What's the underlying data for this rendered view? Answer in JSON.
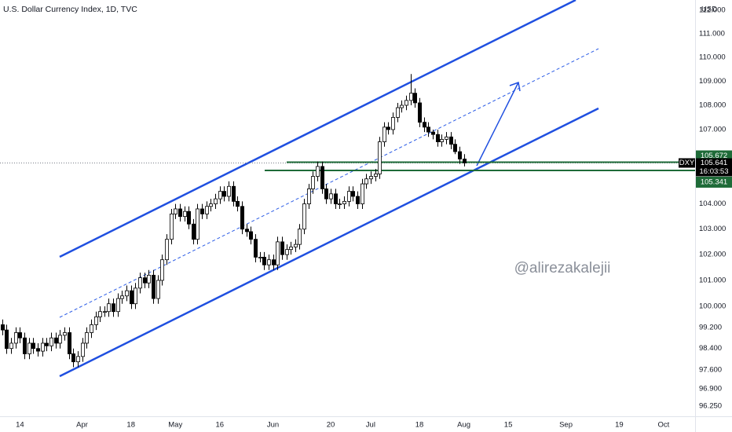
{
  "chart_data": {
    "type": "candlestick",
    "title": "U.S. Dollar Currency Index, 1D, TVC",
    "currency": "USD",
    "watermark": "@alirezakalejii",
    "open": [
      99.3,
      99.1,
      98.4,
      98.6,
      99.0,
      98.8,
      98.2,
      98.6,
      98.4,
      98.3,
      98.6,
      98.5,
      98.8,
      98.6,
      98.9,
      99.0,
      98.2,
      97.9,
      98.1,
      98.6,
      99.0,
      99.3,
      99.6,
      99.8,
      99.8,
      100.1,
      99.8,
      100.3,
      100.4,
      100.6,
      100.1,
      100.7,
      101.1,
      100.9,
      101.2,
      100.3,
      101.0,
      101.8,
      102.6,
      103.6,
      103.8,
      103.5,
      103.7,
      103.2,
      102.6,
      103.8,
      103.6,
      103.9,
      104.0,
      104.2,
      104.5,
      104.3,
      104.7,
      104.1,
      103.9,
      103.0,
      102.9,
      102.6,
      101.9,
      101.9,
      101.6,
      101.8,
      101.6,
      102.5,
      102.0,
      102.2,
      102.3,
      102.4,
      103.0,
      104.0,
      104.6,
      105.1,
      105.5,
      104.6,
      104.2,
      104.4,
      104.0,
      104.0,
      104.1,
      104.5,
      104.3,
      104.0,
      104.8,
      105.0,
      105.1,
      105.2,
      106.5,
      107.1,
      107.0,
      107.5,
      107.9,
      108.0,
      108.2,
      108.5,
      108.1,
      107.3,
      107.1,
      106.9,
      106.8,
      106.5,
      106.6,
      106.7,
      106.4,
      106.1,
      105.8
    ],
    "high": [
      99.5,
      99.3,
      98.8,
      99.2,
      99.2,
      99.0,
      98.8,
      98.8,
      98.6,
      98.8,
      98.8,
      99.0,
      99.0,
      99.1,
      99.2,
      99.2,
      98.4,
      98.3,
      98.8,
      99.2,
      99.5,
      99.8,
      100.0,
      100.0,
      100.3,
      100.3,
      100.5,
      100.6,
      100.8,
      100.8,
      100.9,
      101.3,
      101.3,
      101.4,
      101.4,
      101.2,
      102.0,
      102.8,
      103.8,
      104.0,
      104.0,
      103.9,
      103.9,
      103.4,
      104.0,
      104.0,
      104.1,
      104.2,
      104.4,
      104.7,
      104.7,
      104.9,
      104.9,
      104.3,
      104.1,
      103.2,
      103.1,
      102.8,
      102.1,
      102.1,
      102.0,
      102.0,
      102.7,
      102.7,
      102.4,
      102.5,
      102.6,
      103.2,
      104.2,
      104.8,
      105.3,
      105.7,
      105.7,
      104.8,
      104.6,
      104.6,
      104.2,
      104.3,
      104.7,
      104.7,
      104.5,
      105.0,
      105.2,
      105.3,
      105.4,
      106.7,
      107.3,
      107.3,
      107.7,
      108.1,
      108.2,
      108.4,
      109.3,
      108.7,
      108.3,
      107.5,
      107.3,
      107.0,
      107.0,
      106.8,
      106.9,
      106.9,
      106.6,
      106.3,
      106.0
    ],
    "low": [
      98.9,
      98.2,
      98.2,
      98.4,
      98.6,
      98.0,
      98.0,
      98.2,
      98.1,
      98.1,
      98.3,
      98.3,
      98.4,
      98.4,
      98.7,
      98.0,
      97.7,
      97.7,
      97.9,
      98.4,
      98.8,
      99.1,
      99.4,
      99.6,
      99.6,
      99.6,
      99.6,
      100.1,
      100.2,
      99.9,
      99.9,
      100.5,
      100.7,
      100.7,
      100.1,
      100.1,
      100.8,
      101.6,
      102.4,
      103.4,
      103.3,
      103.3,
      103.0,
      102.4,
      102.4,
      103.4,
      103.4,
      103.7,
      103.8,
      104.0,
      104.1,
      104.1,
      103.9,
      103.7,
      102.8,
      102.7,
      102.4,
      101.7,
      101.7,
      101.4,
      101.4,
      101.4,
      101.4,
      101.8,
      101.8,
      102.0,
      102.1,
      102.2,
      102.8,
      103.8,
      104.4,
      104.9,
      104.4,
      104.0,
      104.0,
      103.8,
      103.8,
      103.8,
      103.9,
      104.1,
      103.8,
      103.8,
      104.6,
      104.8,
      104.9,
      105.0,
      106.3,
      106.8,
      106.8,
      107.3,
      107.7,
      107.8,
      108.0,
      107.9,
      107.1,
      106.9,
      106.7,
      106.6,
      106.3,
      106.3,
      106.4,
      106.2,
      106.0,
      105.6,
      105.5
    ],
    "close": [
      99.1,
      98.4,
      98.6,
      99.0,
      98.8,
      98.2,
      98.6,
      98.4,
      98.3,
      98.6,
      98.5,
      98.8,
      98.6,
      98.9,
      99.0,
      98.2,
      97.9,
      98.1,
      98.6,
      99.0,
      99.3,
      99.6,
      99.8,
      99.8,
      100.1,
      99.8,
      100.3,
      100.4,
      100.6,
      100.1,
      100.7,
      101.1,
      100.9,
      101.2,
      100.3,
      101.0,
      101.8,
      102.6,
      103.6,
      103.8,
      103.5,
      103.7,
      103.2,
      102.6,
      103.8,
      103.6,
      103.9,
      104.0,
      104.2,
      104.5,
      104.3,
      104.7,
      104.1,
      103.9,
      103.0,
      102.9,
      102.6,
      101.9,
      101.9,
      101.6,
      101.8,
      101.6,
      102.5,
      102.0,
      102.2,
      102.3,
      102.4,
      103.0,
      104.0,
      104.6,
      105.1,
      105.5,
      104.6,
      104.2,
      104.4,
      104.0,
      104.0,
      104.1,
      104.5,
      104.3,
      104.0,
      104.8,
      105.0,
      105.1,
      105.2,
      106.5,
      107.1,
      107.0,
      107.5,
      107.9,
      108.0,
      108.2,
      108.5,
      108.1,
      107.3,
      107.1,
      106.9,
      106.8,
      106.5,
      106.6,
      106.7,
      106.4,
      106.1,
      105.8,
      105.641
    ],
    "up_color": "#ffffff",
    "down_color": "#000000",
    "outline_color": "#000000",
    "xlim": [
      -0.5,
      156.1
    ],
    "ylim": [
      95.88,
      112.44
    ],
    "log_scale": true,
    "grid": false,
    "xticks": [
      {
        "value": 4,
        "label": "14"
      },
      {
        "value": 18,
        "label": "Apr"
      },
      {
        "value": 29,
        "label": "18"
      },
      {
        "value": 39,
        "label": "May"
      },
      {
        "value": 49,
        "label": "16"
      },
      {
        "value": 61,
        "label": "Jun"
      },
      {
        "value": 74,
        "label": "20"
      },
      {
        "value": 83,
        "label": "Jul"
      },
      {
        "value": 94,
        "label": "18"
      },
      {
        "value": 104,
        "label": "Aug"
      },
      {
        "value": 114,
        "label": "15"
      },
      {
        "value": 127,
        "label": "Sep"
      },
      {
        "value": 139,
        "label": "19"
      },
      {
        "value": 149,
        "label": "Oct"
      }
    ],
    "yticks": [
      {
        "value": 112,
        "label": "112.000"
      },
      {
        "value": 111,
        "label": "111.000"
      },
      {
        "value": 110,
        "label": "110.000"
      },
      {
        "value": 109,
        "label": "109.000"
      },
      {
        "value": 108,
        "label": "108.000"
      },
      {
        "value": 107,
        "label": "107.000"
      },
      {
        "value": 104,
        "label": "104.000"
      },
      {
        "value": 103,
        "label": "103.000"
      },
      {
        "value": 102,
        "label": "102.000"
      },
      {
        "value": 101,
        "label": "101.000"
      },
      {
        "value": 100,
        "label": "100.000"
      },
      {
        "value": 99.2,
        "label": "99.200"
      },
      {
        "value": 98.4,
        "label": "98.400"
      },
      {
        "value": 97.6,
        "label": "97.600"
      },
      {
        "value": 96.9,
        "label": "96.900"
      },
      {
        "value": 96.25,
        "label": "96.250"
      }
    ],
    "levels": [
      105.672,
      105.341
    ],
    "level_color": "#1e6b38",
    "symbol": "DXY",
    "last_price": 105.641,
    "countdown": "16:03:53"
  }
}
